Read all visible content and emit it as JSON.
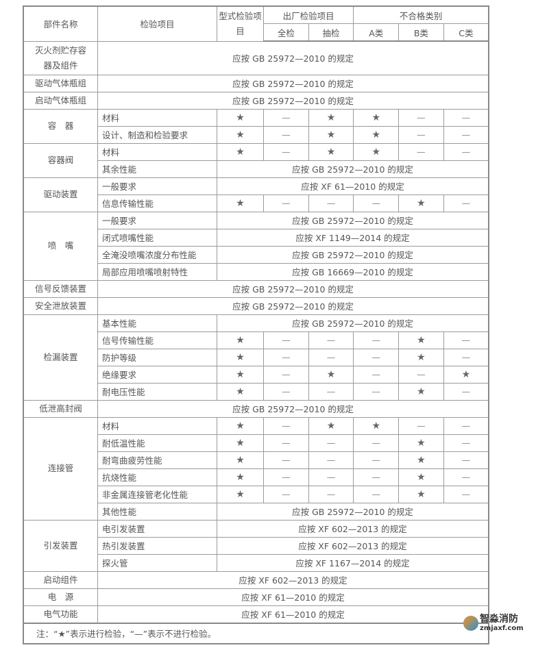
{
  "header": {
    "part_name": "部件名称",
    "inspection_item": "检验项目",
    "type_test": "型式检验项目",
    "factory_test": "出厂检验项目",
    "full_check": "全检",
    "sample_check": "抽检",
    "nonconformity": "不合格类别",
    "class_a": "A类",
    "class_b": "B类",
    "class_c": "C类"
  },
  "groups": [
    {
      "part": "灭火剂贮存容器及组件",
      "note": "应按 GB 25972—2010 的规定",
      "tall": true
    },
    {
      "part": "驱动气体瓶组",
      "note": "应按 GB 25972—2010 的规定"
    },
    {
      "part": "启动气体瓶组",
      "note": "应按 GB 25972—2010 的规定"
    },
    {
      "part": "容　器",
      "items": [
        {
          "name": "材料",
          "marks": [
            "★",
            "—",
            "★",
            "★",
            "—",
            "—"
          ]
        },
        {
          "name": "设计、制造和检验要求",
          "marks": [
            "★",
            "—",
            "★",
            "★",
            "—",
            "—"
          ]
        }
      ]
    },
    {
      "part": "容器阀",
      "items": [
        {
          "name": "材料",
          "marks": [
            "★",
            "—",
            "★",
            "★",
            "—",
            "—"
          ]
        },
        {
          "name": "其余性能",
          "note": "应按 GB 25972—2010 的规定"
        }
      ]
    },
    {
      "part": "驱动装置",
      "items": [
        {
          "name": "一般要求",
          "note": "应按 XF 61—2010 的规定"
        },
        {
          "name": "信息传输性能",
          "marks": [
            "★",
            "—",
            "—",
            "—",
            "★",
            "—"
          ]
        }
      ]
    },
    {
      "part": "喷　嘴",
      "items": [
        {
          "name": "一般要求",
          "note": "应按 GB 25972—2010 的规定"
        },
        {
          "name": "闭式喷嘴性能",
          "note": "应按 XF 1149—2014 的规定"
        },
        {
          "name": "全淹没喷嘴浓度分布性能",
          "note": "应按 GB 25972—2010 的规定"
        },
        {
          "name": "局部应用喷嘴喷射特性",
          "note": "应按 GB 16669—2010 的规定"
        }
      ]
    },
    {
      "part": "信号反馈装置",
      "note": "应按 GB 25972—2010 的规定"
    },
    {
      "part": "安全泄放装置",
      "note": "应按 GB 25972—2010 的规定"
    },
    {
      "part": "检漏装置",
      "items": [
        {
          "name": "基本性能",
          "note": "应按 GB 25972—2010 的规定"
        },
        {
          "name": "信号传输性能",
          "marks": [
            "★",
            "—",
            "—",
            "—",
            "★",
            "—"
          ]
        },
        {
          "name": "防护等级",
          "marks": [
            "★",
            "—",
            "—",
            "—",
            "★",
            "—"
          ]
        },
        {
          "name": "绝缘要求",
          "marks": [
            "★",
            "—",
            "★",
            "—",
            "—",
            "★"
          ]
        },
        {
          "name": "耐电压性能",
          "marks": [
            "★",
            "—",
            "—",
            "—",
            "★",
            "—"
          ]
        }
      ]
    },
    {
      "part": "低泄高封阀",
      "note": "应按 GB 25972—2010 的规定"
    },
    {
      "part": "连接管",
      "items": [
        {
          "name": "材料",
          "marks": [
            "★",
            "—",
            "★",
            "★",
            "—",
            "—"
          ]
        },
        {
          "name": "耐低温性能",
          "marks": [
            "★",
            "—",
            "—",
            "—",
            "★",
            "—"
          ]
        },
        {
          "name": "耐弯曲疲劳性能",
          "marks": [
            "★",
            "—",
            "—",
            "—",
            "★",
            "—"
          ]
        },
        {
          "name": "抗烧性能",
          "marks": [
            "★",
            "—",
            "—",
            "—",
            "★",
            "—"
          ]
        },
        {
          "name": "非金属连接管老化性能",
          "marks": [
            "★",
            "—",
            "—",
            "—",
            "★",
            "—"
          ]
        },
        {
          "name": "其他性能",
          "note": "应按 GB 25972—2010 的规定"
        }
      ]
    },
    {
      "part": "引发装置",
      "items": [
        {
          "name": "电引发装置",
          "note": "应按 XF 602—2013 的规定"
        },
        {
          "name": "热引发装置",
          "note": "应按 XF 602—2013 的规定"
        },
        {
          "name": "探火管",
          "note": "应按 XF 1167—2014 的规定"
        }
      ]
    },
    {
      "part": "启动组件",
      "note": "应按 XF 602—2013 的规定"
    },
    {
      "part": "电　源",
      "note": "应按 XF 61—2010 的规定"
    },
    {
      "part": "电气功能",
      "note": "应按 XF 61—2010 的规定"
    }
  ],
  "footnote": "注：“★”表示进行检验，“—”表示不进行检验。",
  "watermark": {
    "name": "智淼消防",
    "site": "zmjaxf.com"
  }
}
